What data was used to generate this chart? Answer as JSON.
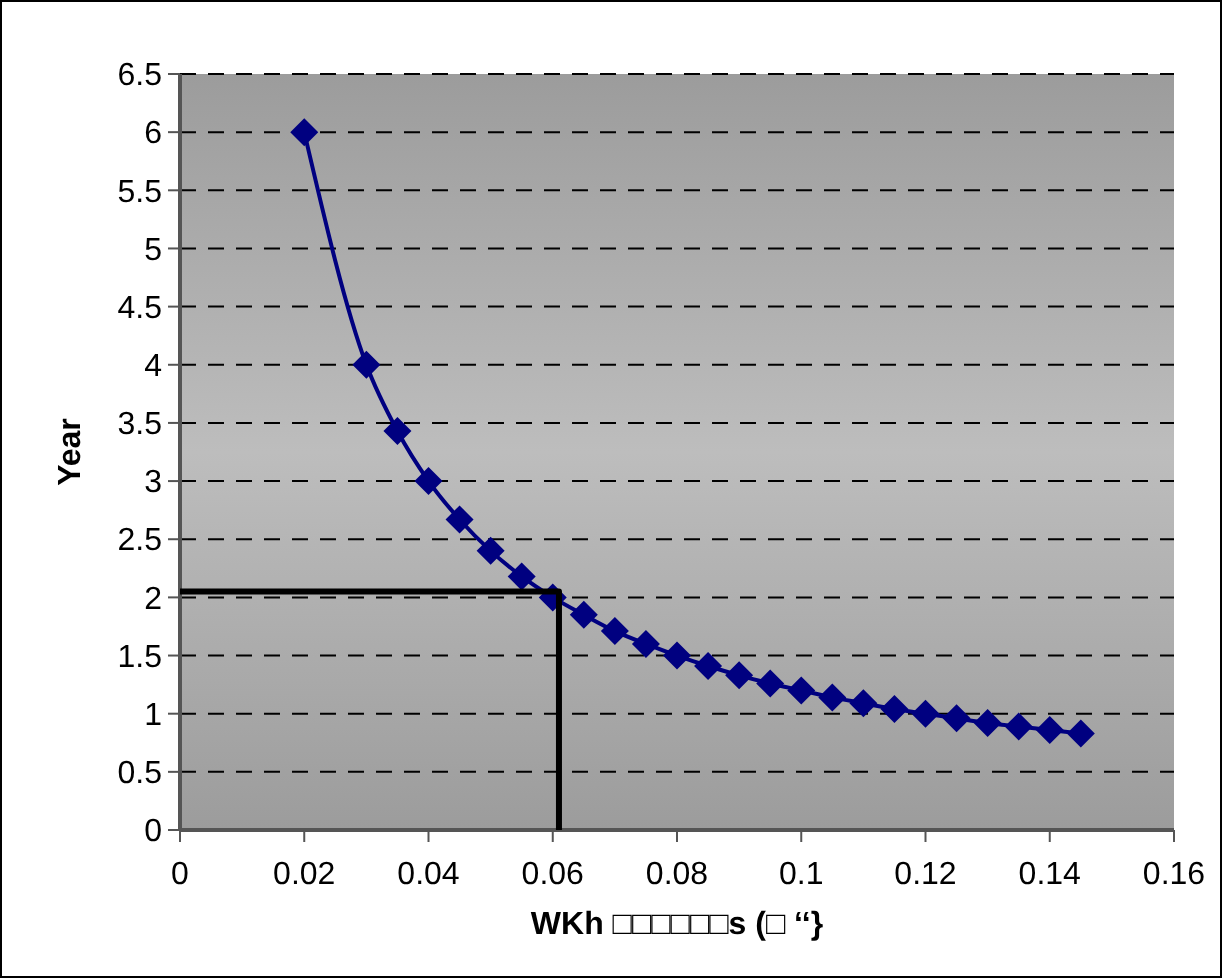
{
  "chart_data": {
    "type": "line",
    "xlabel": "WKh □□□□□□s (□ ‘‘}",
    "ylabel": "Year",
    "xlim": [
      0,
      0.16
    ],
    "xticks": [
      0,
      0.02,
      0.04,
      0.06,
      0.08,
      0.1,
      0.12,
      0.14,
      0.16
    ],
    "ylim": [
      0,
      6.5
    ],
    "yticks": [
      0,
      0.5,
      1,
      1.5,
      2,
      2.5,
      3,
      3.5,
      4,
      4.5,
      5,
      5.5,
      6,
      6.5
    ],
    "grid": "y",
    "marker": "diamond",
    "line_style": "solid",
    "series": [
      {
        "color": "#000080",
        "x": [
          0.02,
          0.03,
          0.035,
          0.04,
          0.045,
          0.05,
          0.055,
          0.06,
          0.065,
          0.07,
          0.075,
          0.08,
          0.085,
          0.09,
          0.095,
          0.1,
          0.105,
          0.11,
          0.115,
          0.12,
          0.125,
          0.13,
          0.135,
          0.14,
          0.145
        ],
        "values": [
          6,
          4,
          3.43,
          3,
          2.67,
          2.4,
          2.18,
          2,
          1.85,
          1.71,
          1.6,
          1.5,
          1.41,
          1.33,
          1.26,
          1.2,
          1.14,
          1.09,
          1.04,
          1,
          0.96,
          0.92,
          0.89,
          0.86,
          0.83
        ]
      },
      {
        "color": "#000000",
        "marker": "none",
        "x": [
          0,
          0.061,
          0.061
        ],
        "values": [
          2.05,
          2.05,
          0
        ]
      }
    ]
  }
}
